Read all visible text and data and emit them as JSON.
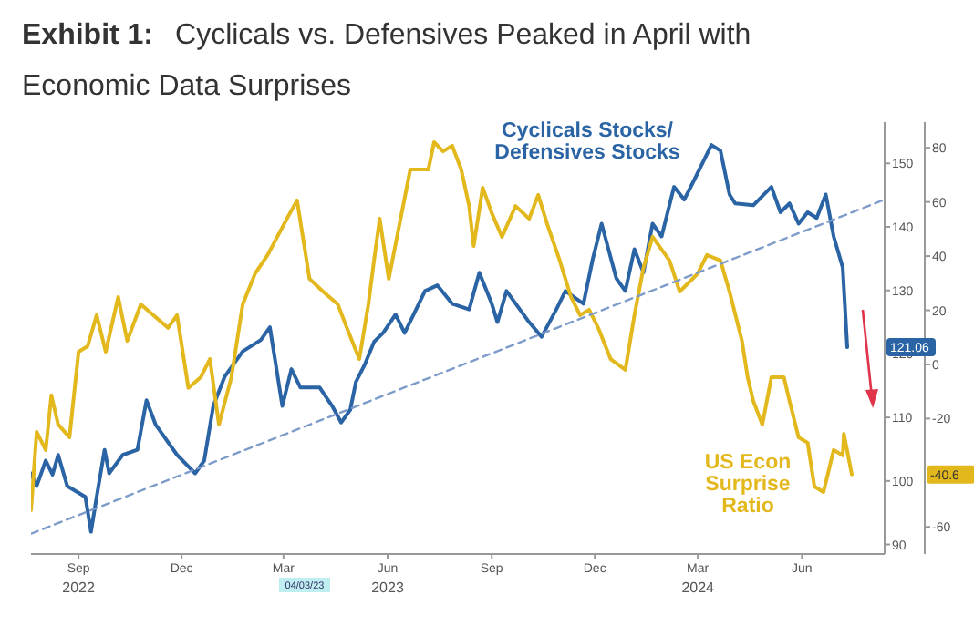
{
  "chart_data": {
    "type": "line",
    "title": "Exhibit 1: Cyclicals vs. Defensives Peaked in April with\nEconomic Data Surprises",
    "xlim": [
      "2022-07-21",
      "2024-08-13"
    ],
    "xticks": [
      {
        "value": "2022-09-01",
        "label": "Sep\n2022"
      },
      {
        "value": "2022-12-01",
        "label": "Dec"
      },
      {
        "value": "2023-03-01",
        "label": "Mar"
      },
      {
        "value": "2023-06-01",
        "label": "Jun\n2023"
      },
      {
        "value": "2023-09-01",
        "label": "Sep"
      },
      {
        "value": "2023-12-01",
        "label": "Dec"
      },
      {
        "value": "2024-03-01",
        "label": "Mar\n2024"
      },
      {
        "value": "2024-06-01",
        "label": "Jun"
      }
    ],
    "ylim": [
      88.5,
      156.5
    ],
    "yticks": [
      90,
      100,
      110,
      120,
      130,
      140,
      150
    ],
    "y2lim": [
      -70,
      89.5
    ],
    "y2ticks": [
      -60,
      -20,
      0,
      20,
      40,
      60,
      80
    ],
    "legend": false,
    "grid": false,
    "series": [
      {
        "name": "Cyclicals Stocks/\nDefensives Stocks",
        "color": "#2a64a4",
        "x": [
          "2022-07-21",
          "2022-07-26",
          "2022-08-03",
          "2022-08-09",
          "2022-08-14",
          "2022-08-22",
          "2022-09-07",
          "2022-09-12",
          "2022-09-17",
          "2022-09-24",
          "2022-09-28",
          "2022-10-10",
          "2022-10-23",
          "2022-10-31",
          "2022-11-08",
          "2022-11-27",
          "2022-12-13",
          "2022-12-21",
          "2022-12-29",
          "2023-01-08",
          "2023-01-16",
          "2023-01-24",
          "2023-02-09",
          "2023-02-17",
          "2023-02-28",
          "2023-03-08",
          "2023-03-16",
          "2023-04-02",
          "2023-04-13",
          "2023-04-21",
          "2023-04-29",
          "2023-05-04",
          "2023-05-12",
          "2023-05-20",
          "2023-05-28",
          "2023-06-08",
          "2023-06-16",
          "2023-06-24",
          "2023-07-04",
          "2023-07-15",
          "2023-07-28",
          "2023-08-12",
          "2023-08-21",
          "2023-09-01",
          "2023-09-06",
          "2023-09-14",
          "2023-10-04",
          "2023-10-15",
          "2023-10-28",
          "2023-11-05",
          "2023-11-21",
          "2023-11-29",
          "2023-12-07",
          "2023-12-20",
          "2023-12-28",
          "2024-01-05",
          "2024-01-13",
          "2024-01-21",
          "2024-01-29",
          "2024-02-09",
          "2024-02-18",
          "2024-02-26",
          "2024-03-05",
          "2024-03-13",
          "2024-03-21",
          "2024-03-29",
          "2024-04-03",
          "2024-04-19",
          "2024-05-05",
          "2024-05-13",
          "2024-05-21",
          "2024-05-29",
          "2024-06-06",
          "2024-06-14",
          "2024-06-22",
          "2024-06-29",
          "2024-07-07",
          "2024-07-11"
        ],
        "values": [
          101.2,
          99.2,
          103.2,
          101,
          104.1,
          99.2,
          97.5,
          92.0,
          97.5,
          104.9,
          101.2,
          104.1,
          104.9,
          112.7,
          108.9,
          104.1,
          101.2,
          103.2,
          111.8,
          116.4,
          118.4,
          120.4,
          122.2,
          124.2,
          111.8,
          117.6,
          114.7,
          114.7,
          111.8,
          109.2,
          111.2,
          115.6,
          118.4,
          121.9,
          123.3,
          126.2,
          123.3,
          126.2,
          129.9,
          130.8,
          127.9,
          127.0,
          132.8,
          127.9,
          125.0,
          129.9,
          125.0,
          122.7,
          127.0,
          129.9,
          127.9,
          134.8,
          140.5,
          131.9,
          129.9,
          136.5,
          132.8,
          140.5,
          138.5,
          146.3,
          144.3,
          147.1,
          150.0,
          152.9,
          152.0,
          145.1,
          143.7,
          143.4,
          146.3,
          142.3,
          143.7,
          140.5,
          142.3,
          141.4,
          145.1,
          138.5,
          133.6,
          121.06
        ]
      },
      {
        "name": "US Econ\nSurprise\nRatio",
        "color": "#e3b81c",
        "axis": "y2",
        "x": [
          "2022-07-21",
          "2022-07-26",
          "2022-08-03",
          "2022-08-08",
          "2022-08-14",
          "2022-08-24",
          "2022-09-01",
          "2022-09-09",
          "2022-09-17",
          "2022-09-25",
          "2022-10-06",
          "2022-10-14",
          "2022-10-26",
          "2022-11-19",
          "2022-11-27",
          "2022-12-07",
          "2022-12-18",
          "2022-12-26",
          "2023-01-03",
          "2023-01-14",
          "2023-01-24",
          "2023-02-04",
          "2023-02-15",
          "2023-03-04",
          "2023-03-13",
          "2023-03-24",
          "2023-04-05",
          "2023-04-18",
          "2023-04-26",
          "2023-05-07",
          "2023-05-15",
          "2023-05-20",
          "2023-05-25",
          "2023-06-02",
          "2023-06-21",
          "2023-07-07",
          "2023-07-12",
          "2023-07-20",
          "2023-07-28",
          "2023-08-05",
          "2023-08-12",
          "2023-08-16",
          "2023-08-24",
          "2023-09-01",
          "2023-09-10",
          "2023-09-22",
          "2023-10-04",
          "2023-10-12",
          "2023-10-20",
          "2023-10-31",
          "2023-11-10",
          "2023-11-18",
          "2023-11-26",
          "2023-12-04",
          "2023-12-15",
          "2023-12-28",
          "2024-01-05",
          "2024-01-13",
          "2024-01-21",
          "2024-02-05",
          "2024-02-14",
          "2024-03-01",
          "2024-03-09",
          "2024-03-21",
          "2024-03-29",
          "2024-04-09",
          "2024-04-14",
          "2024-04-19",
          "2024-04-27",
          "2024-05-05",
          "2024-05-16",
          "2024-05-21",
          "2024-05-29",
          "2024-06-06",
          "2024-06-12",
          "2024-06-20",
          "2024-06-29",
          "2024-07-07",
          "2024-07-08",
          "2024-07-15"
        ],
        "values": [
          -53.8,
          -24.9,
          -31.6,
          -11.4,
          -22.2,
          -26.9,
          4.7,
          6.7,
          18.2,
          4.7,
          24.9,
          8.7,
          22.2,
          13.5,
          18.2,
          -8.7,
          -4.7,
          2.0,
          -22.2,
          -4.7,
          22.2,
          33.6,
          40.4,
          53.8,
          60.6,
          31.6,
          26.9,
          22.2,
          13.5,
          2.0,
          22.2,
          38.4,
          53.8,
          31.6,
          72.0,
          72.0,
          82.1,
          78.7,
          80.8,
          72.0,
          58.5,
          43.7,
          65.3,
          55.9,
          47.1,
          58.5,
          53.8,
          62.6,
          51.8,
          38.4,
          24.9,
          18.2,
          20.2,
          13.5,
          2.0,
          -2.0,
          18.2,
          35.7,
          47.1,
          38.4,
          26.9,
          33.6,
          40.4,
          38.4,
          26.9,
          8.7,
          -4.7,
          -13.5,
          -22.2,
          -4.7,
          -4.7,
          -13.5,
          -26.9,
          -28.9,
          -45.1,
          -47.1,
          -31.6,
          -33.6,
          -25.6,
          -40.6
        ]
      },
      {
        "type": "line",
        "color": "#7d9cc9",
        "line_style": "dashed",
        "x": [
          "2022-07-21",
          "2024-08-13"
        ],
        "values": [
          91.7,
          144.3
        ]
      }
    ],
    "annotations": [
      "121.06",
      "-40.6",
      "04/03/23"
    ]
  }
}
